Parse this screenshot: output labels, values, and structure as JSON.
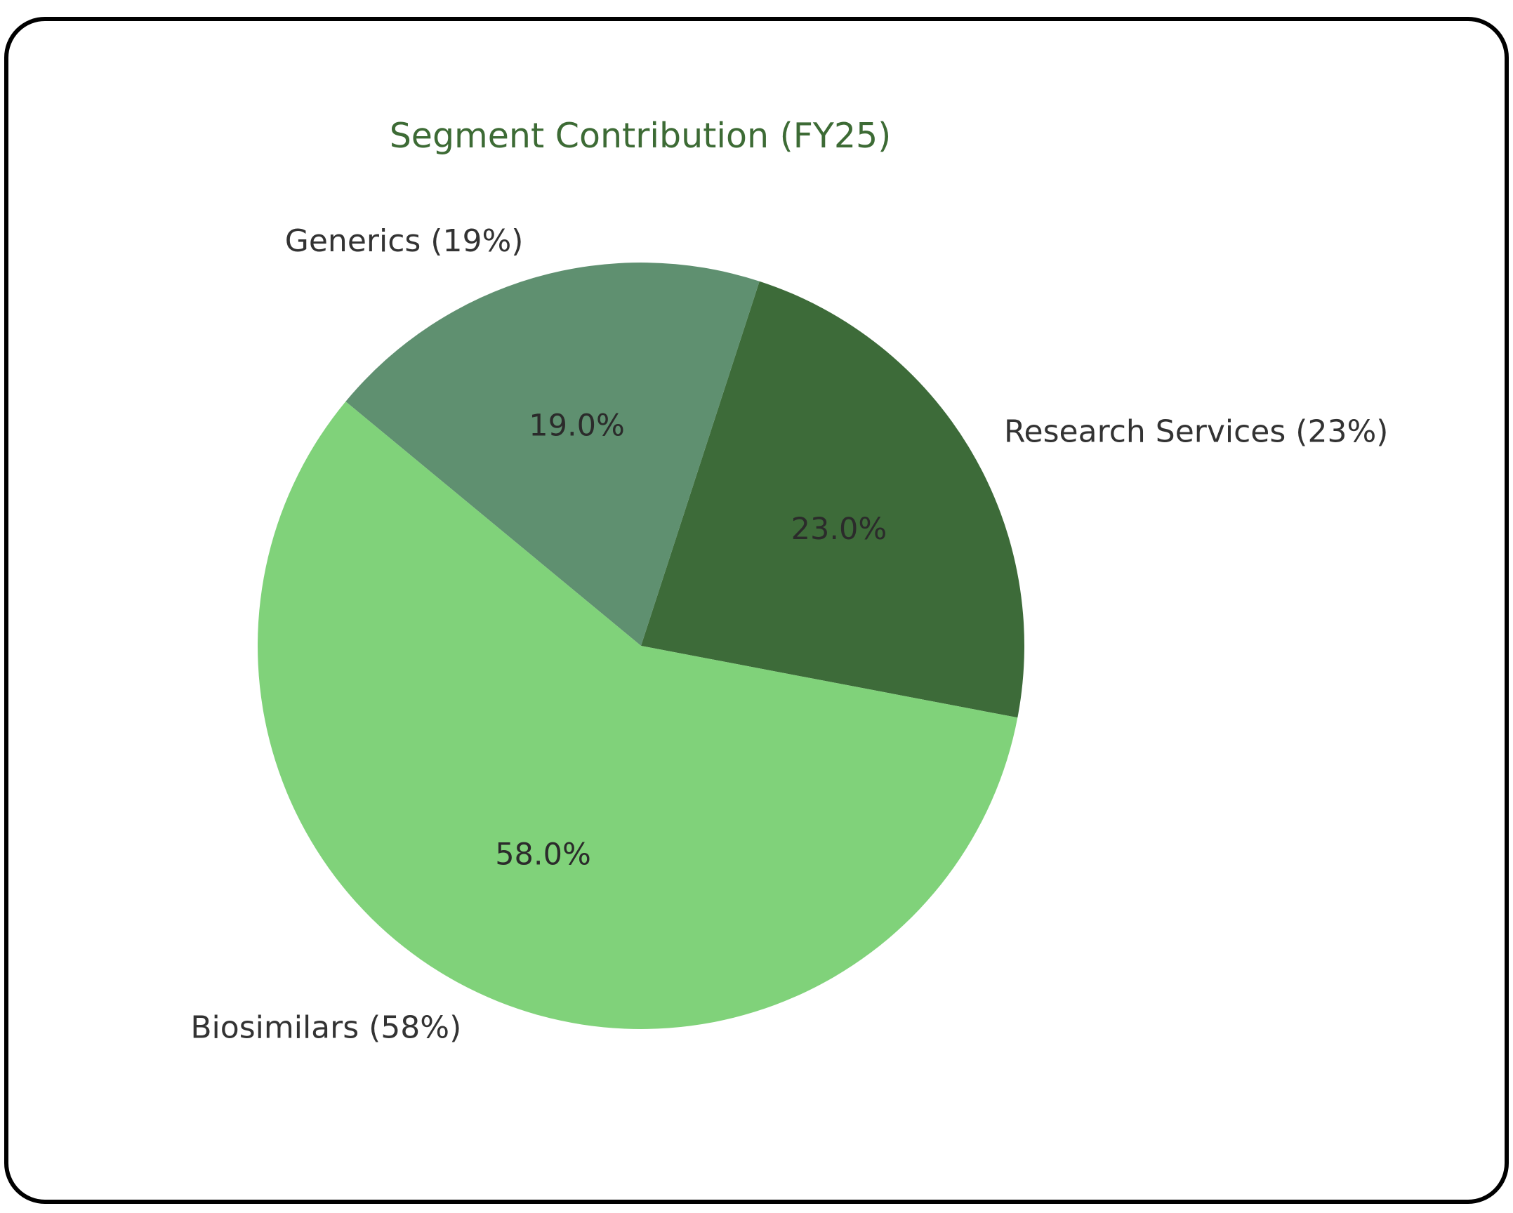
{
  "chart_data": {
    "type": "pie",
    "title": "Segment Contribution (FY25)",
    "categories": [
      "Research Services",
      "Generics",
      "Biosimilars"
    ],
    "values": [
      23,
      19,
      58
    ],
    "labels": [
      "Research Services (23%)",
      "Generics (19%)",
      "Biosimilars (58%)"
    ],
    "autopct_labels": [
      "23.0%",
      "19.0%",
      "58.0%"
    ],
    "colors": [
      "#3d6b39",
      "#5f9070",
      "#80d27a"
    ],
    "startangle": -10.8,
    "legend": null
  },
  "style": {
    "title_color": "#3d6b35",
    "text_color": "#333333"
  }
}
